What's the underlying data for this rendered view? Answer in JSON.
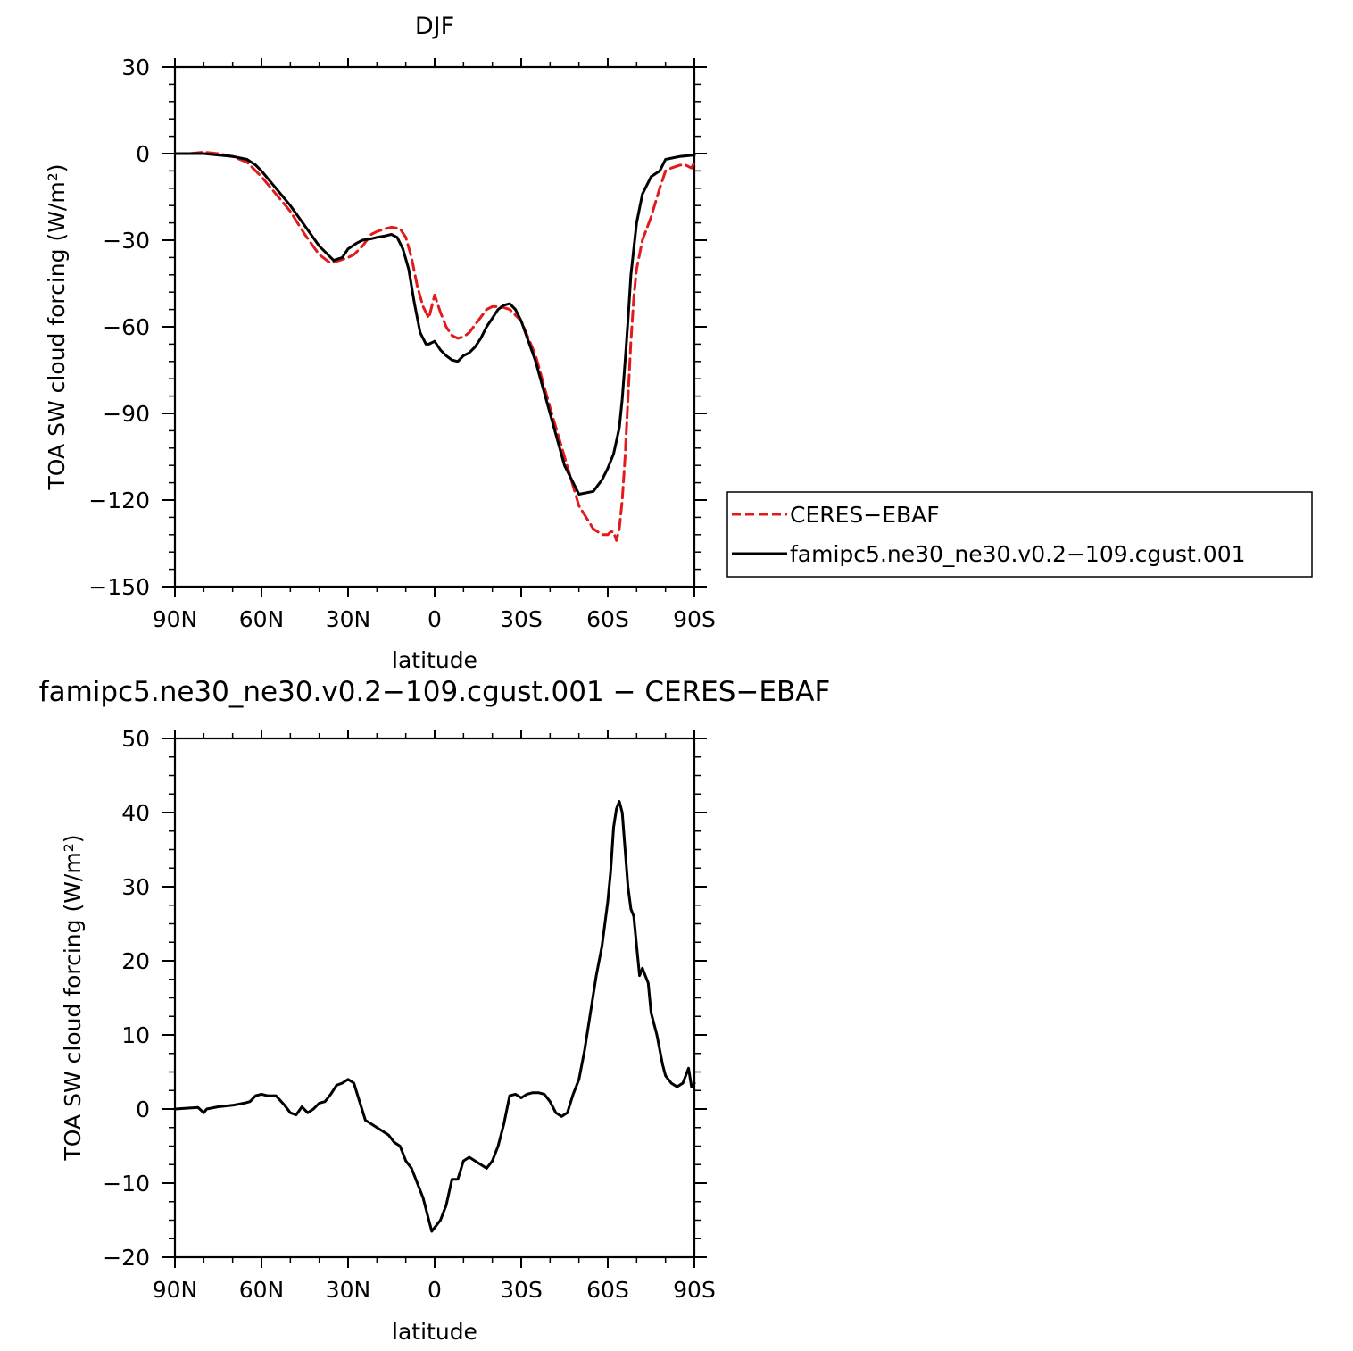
{
  "chart_data": [
    {
      "type": "line",
      "title": "DJF",
      "xlabel": "latitude",
      "ylabel": "TOA SW cloud forcing (W/m²)",
      "x_ticks": [
        {
          "value": 90,
          "label": "90N"
        },
        {
          "value": 60,
          "label": "60N"
        },
        {
          "value": 30,
          "label": "30N"
        },
        {
          "value": 0,
          "label": "0"
        },
        {
          "value": -30,
          "label": "30S"
        },
        {
          "value": -60,
          "label": "60S"
        },
        {
          "value": -90,
          "label": "90S"
        }
      ],
      "xlim": [
        90,
        -90
      ],
      "ylim": [
        -150,
        30
      ],
      "y_ticks": [
        30,
        0,
        -30,
        -60,
        -90,
        -120,
        -150
      ],
      "legend": {
        "placement": "right",
        "entries": [
          {
            "label": "CERES−EBAF",
            "color": "#e31a1c",
            "style": "dashed"
          },
          {
            "label": "famipc5.ne30_ne30.v0.2−109.cgust.001",
            "color": "#000000",
            "style": "solid"
          }
        ]
      },
      "series": [
        {
          "key": "obs",
          "color": "#e31a1c",
          "dashed": true,
          "x": [
            90,
            85,
            80,
            75,
            70,
            65,
            60,
            55,
            50,
            45,
            40,
            36,
            33,
            30,
            28,
            25,
            22,
            20,
            17,
            15,
            12,
            10,
            8,
            6,
            4,
            2,
            0,
            -2,
            -4,
            -6,
            -8,
            -10,
            -12,
            -15,
            -18,
            -20,
            -23,
            -26,
            -30,
            -35,
            -40,
            -45,
            -50,
            -55,
            -58,
            -60,
            -61,
            -62,
            -63,
            -64,
            -65,
            -66,
            -67,
            -68,
            -69,
            -70,
            -72,
            -75,
            -78,
            -80,
            -82,
            -85,
            -87,
            -89,
            -90
          ],
          "y": [
            0,
            0,
            0.5,
            0,
            -1,
            -3,
            -8,
            -14,
            -20,
            -28,
            -35,
            -38,
            -37,
            -36,
            -35,
            -32,
            -28,
            -27,
            -26,
            -25.5,
            -26,
            -29,
            -36,
            -46,
            -53,
            -57,
            -49,
            -55,
            -60,
            -63,
            -64,
            -63.5,
            -62,
            -58,
            -54,
            -53,
            -53,
            -54,
            -58,
            -70,
            -88,
            -105,
            -122,
            -130,
            -132,
            -132,
            -131,
            -131,
            -134,
            -130,
            -120,
            -105,
            -85,
            -65,
            -50,
            -40,
            -30,
            -22,
            -12,
            -6,
            -5,
            -4,
            -4,
            -5,
            -3
          ]
        },
        {
          "key": "model",
          "color": "#000000",
          "dashed": false,
          "x": [
            90,
            85,
            80,
            75,
            70,
            65,
            62,
            60,
            55,
            50,
            45,
            40,
            35,
            32,
            30,
            27,
            25,
            22,
            20,
            17,
            15,
            13,
            11,
            9,
            7,
            5,
            3,
            2,
            0,
            -2,
            -4,
            -6,
            -8,
            -10,
            -12,
            -14,
            -16,
            -18,
            -20,
            -22,
            -24,
            -26,
            -28,
            -30,
            -35,
            -40,
            -45,
            -50,
            -55,
            -58,
            -60,
            -62,
            -64,
            -65,
            -66,
            -67,
            -68,
            -70,
            -72,
            -75,
            -78,
            -80,
            -85,
            -90
          ],
          "y": [
            0,
            0,
            0,
            -0.5,
            -1,
            -2,
            -4,
            -6,
            -12,
            -18,
            -25,
            -32,
            -37,
            -36,
            -33,
            -31,
            -30,
            -29.5,
            -29,
            -28.5,
            -28,
            -29,
            -33,
            -40,
            -52,
            -62,
            -66,
            -66,
            -65,
            -68,
            -70,
            -71.5,
            -72,
            -70,
            -69,
            -67,
            -64,
            -60,
            -57,
            -54,
            -52.5,
            -52,
            -54,
            -58,
            -72,
            -90,
            -108,
            -118,
            -117,
            -113,
            -109,
            -104,
            -95,
            -85,
            -72,
            -58,
            -42,
            -24,
            -14,
            -8,
            -6,
            -2,
            -1,
            -0.5
          ]
        }
      ]
    },
    {
      "type": "line",
      "title": "famipc5.ne30_ne30.v0.2−109.cgust.001 − CERES−EBAF",
      "xlabel": "latitude",
      "ylabel": "TOA SW cloud forcing (W/m²)",
      "x_ticks": [
        {
          "value": 90,
          "label": "90N"
        },
        {
          "value": 60,
          "label": "60N"
        },
        {
          "value": 30,
          "label": "30N"
        },
        {
          "value": 0,
          "label": "0"
        },
        {
          "value": -30,
          "label": "30S"
        },
        {
          "value": -60,
          "label": "60S"
        },
        {
          "value": -90,
          "label": "90S"
        }
      ],
      "xlim": [
        90,
        -90
      ],
      "ylim": [
        -20,
        50
      ],
      "y_ticks": [
        50,
        40,
        30,
        20,
        10,
        0,
        -10,
        -20
      ],
      "series": [
        {
          "key": "diff",
          "color": "#000000",
          "dashed": false,
          "x": [
            90,
            82,
            80,
            79,
            75,
            70,
            66,
            64,
            62,
            60,
            58,
            55,
            52,
            50,
            48,
            46,
            44,
            42,
            40,
            38,
            36,
            34,
            32,
            30,
            28,
            26,
            24,
            22,
            20,
            18,
            16,
            14,
            12,
            10,
            8,
            6,
            4,
            2,
            1,
            0,
            -2,
            -4,
            -6,
            -8,
            -10,
            -12,
            -14,
            -16,
            -18,
            -20,
            -22,
            -24,
            -26,
            -28,
            -30,
            -32,
            -34,
            -36,
            -38,
            -40,
            -42,
            -44,
            -46,
            -48,
            -50,
            -52,
            -54,
            -56,
            -58,
            -60,
            -61,
            -62,
            -63,
            -64,
            -65,
            -66,
            -67,
            -68,
            -69,
            -70,
            -71,
            -72,
            -73,
            -74,
            -75,
            -77,
            -79,
            -80,
            -82,
            -84,
            -86,
            -88,
            -89,
            -90
          ],
          "y": [
            0,
            0.2,
            -0.5,
            0,
            0.3,
            0.5,
            0.8,
            1,
            1.8,
            2,
            1.8,
            1.8,
            0.5,
            -0.5,
            -0.8,
            0.3,
            -0.5,
            0,
            0.8,
            1,
            2,
            3.2,
            3.5,
            4,
            3.5,
            1,
            -1.5,
            -2,
            -2.5,
            -3,
            -3.5,
            -4.5,
            -5,
            -7,
            -8,
            -10,
            -12,
            -15,
            -16.5,
            -16,
            -15,
            -13,
            -9.5,
            -9.5,
            -7,
            -6.5,
            -7,
            -7.5,
            -8,
            -7,
            -5,
            -2,
            1.8,
            2,
            1.5,
            2,
            2.2,
            2.2,
            2,
            1,
            -0.5,
            -1,
            -0.5,
            2,
            4,
            8,
            13,
            18,
            22,
            28,
            32,
            38,
            40.5,
            41.5,
            40,
            35,
            30,
            27,
            26,
            22,
            18,
            19,
            18,
            17,
            13,
            10,
            6,
            4.5,
            3.5,
            3,
            3.5,
            5.5,
            3,
            3.5
          ]
        }
      ]
    }
  ]
}
